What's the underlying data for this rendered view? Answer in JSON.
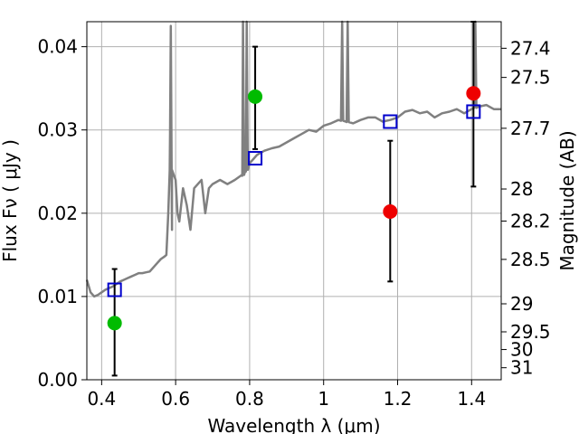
{
  "chart_data": {
    "type": "scatter",
    "title": "",
    "xlabel": "Wavelength  λ (μm)",
    "ylabel": "Flux  Fν  ( μJy )",
    "ylabel_right": "Magnitude (AB)",
    "xlim": [
      0.36,
      1.48
    ],
    "ylim": [
      0.0,
      0.043
    ],
    "grid": true,
    "x_ticks": [
      {
        "value": 0.4,
        "label": "0.4"
      },
      {
        "value": 0.6,
        "label": "0.6"
      },
      {
        "value": 0.8,
        "label": "0.8"
      },
      {
        "value": 1.0,
        "label": "1"
      },
      {
        "value": 1.2,
        "label": "1.2"
      },
      {
        "value": 1.4,
        "label": "1.4"
      }
    ],
    "y_ticks": [
      {
        "value": 0.0,
        "label": "0.00"
      },
      {
        "value": 0.01,
        "label": "0.01"
      },
      {
        "value": 0.02,
        "label": "0.02"
      },
      {
        "value": 0.03,
        "label": "0.03"
      },
      {
        "value": 0.04,
        "label": "0.04"
      }
    ],
    "magnitude_ticks": [
      "27.4",
      "27.5",
      "27.7",
      "28",
      "28.2",
      "28.5",
      "29",
      "29.5",
      "30",
      "31"
    ],
    "colors": {
      "model": "#808080",
      "green": "#00bb00",
      "red": "#ee0000",
      "square": "#0000cc",
      "errorbar": "#000000",
      "grid": "#b0b0b0"
    },
    "model_spectrum": {
      "name": "",
      "x": [
        0.36,
        0.37,
        0.38,
        0.39,
        0.4,
        0.41,
        0.42,
        0.43,
        0.44,
        0.45,
        0.46,
        0.47,
        0.48,
        0.49,
        0.5,
        0.51,
        0.52,
        0.53,
        0.54,
        0.55,
        0.56,
        0.57,
        0.575,
        0.58,
        0.585,
        0.59,
        0.6,
        0.605,
        0.61,
        0.62,
        0.63,
        0.64,
        0.65,
        0.66,
        0.67,
        0.68,
        0.69,
        0.7,
        0.72,
        0.74,
        0.76,
        0.78,
        0.79,
        0.8,
        0.81,
        0.82,
        0.84,
        0.86,
        0.88,
        0.9,
        0.92,
        0.94,
        0.96,
        0.98,
        1.0,
        1.02,
        1.04,
        1.06,
        1.08,
        1.1,
        1.12,
        1.14,
        1.16,
        1.18,
        1.2,
        1.22,
        1.24,
        1.26,
        1.28,
        1.3,
        1.32,
        1.34,
        1.36,
        1.38,
        1.4,
        1.42,
        1.44,
        1.46,
        1.48
      ],
      "y": [
        0.012,
        0.0105,
        0.01,
        0.0102,
        0.0105,
        0.0108,
        0.011,
        0.0112,
        0.0115,
        0.0118,
        0.012,
        0.0122,
        0.0124,
        0.0126,
        0.0128,
        0.0128,
        0.0129,
        0.013,
        0.0135,
        0.014,
        0.0145,
        0.0148,
        0.015,
        0.02,
        0.03,
        0.018,
        0.024,
        0.02,
        0.019,
        0.023,
        0.021,
        0.018,
        0.023,
        0.0235,
        0.024,
        0.02,
        0.023,
        0.0235,
        0.024,
        0.0235,
        0.024,
        0.0245,
        0.025,
        0.026,
        0.0265,
        0.027,
        0.0275,
        0.0278,
        0.028,
        0.0285,
        0.029,
        0.0295,
        0.03,
        0.0298,
        0.0305,
        0.0308,
        0.0312,
        0.031,
        0.0308,
        0.0312,
        0.0315,
        0.0315,
        0.031,
        0.0312,
        0.0315,
        0.0322,
        0.0324,
        0.032,
        0.0322,
        0.0315,
        0.032,
        0.0322,
        0.0325,
        0.032,
        0.0325,
        0.0328,
        0.033,
        0.0325,
        0.0325
      ],
      "emission_lines": [
        {
          "x": 0.587,
          "peak": 0.0425
        },
        {
          "x": 0.782,
          "peak": 0.043
        },
        {
          "x": 0.792,
          "peak": 0.043
        },
        {
          "x": 1.05,
          "peak": 0.043
        },
        {
          "x": 1.065,
          "peak": 0.043
        },
        {
          "x": 1.41,
          "peak": 0.043
        }
      ]
    },
    "series": [
      {
        "name": "",
        "marker": "circle",
        "color": "#00bb00",
        "points": [
          {
            "x": 0.435,
            "y": 0.0068,
            "err_low": 0.0005,
            "err_high": 0.0133
          },
          {
            "x": 0.815,
            "y": 0.034,
            "err_low": 0.0277,
            "err_high": 0.04
          }
        ]
      },
      {
        "name": "",
        "marker": "circle",
        "color": "#ee0000",
        "points": [
          {
            "x": 1.18,
            "y": 0.0202,
            "err_low": 0.0118,
            "err_high": 0.0287
          },
          {
            "x": 1.405,
            "y": 0.0344,
            "err_low": 0.0232,
            "err_high": 0.043
          }
        ]
      },
      {
        "name": "",
        "marker": "square",
        "color": "#0000cc",
        "points": [
          {
            "x": 0.435,
            "y": 0.0108
          },
          {
            "x": 0.815,
            "y": 0.0266
          },
          {
            "x": 1.18,
            "y": 0.031
          },
          {
            "x": 1.405,
            "y": 0.0322
          }
        ]
      }
    ]
  }
}
